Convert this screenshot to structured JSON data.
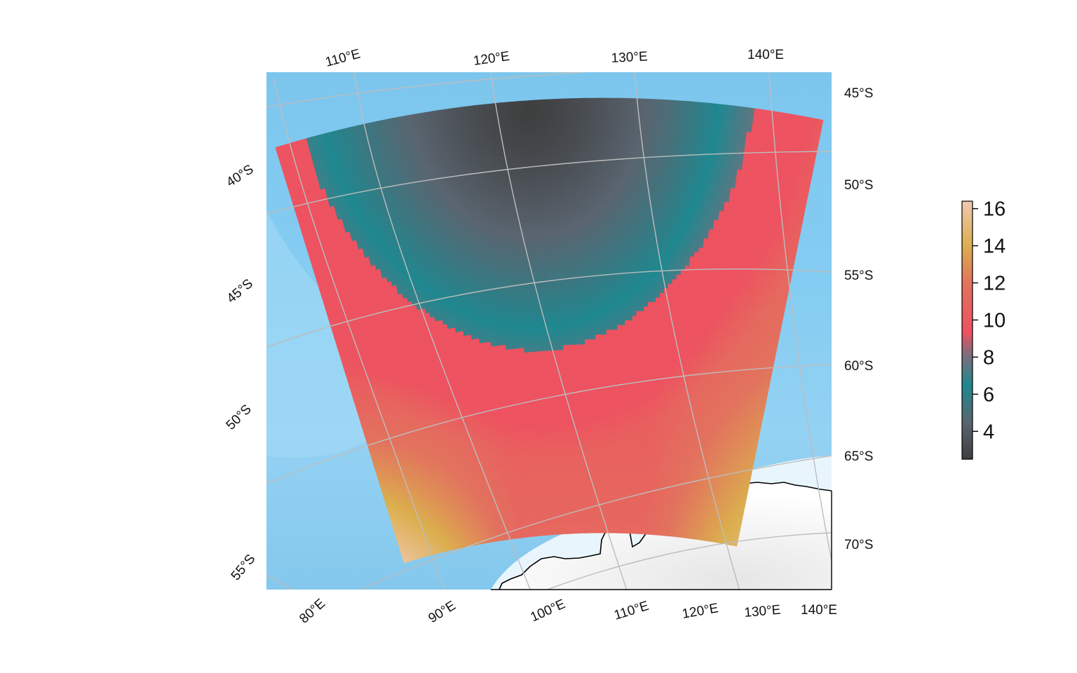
{
  "map": {
    "projection": "polar stereographic (south)",
    "graticule_color": "#bdbdbd",
    "ocean_color": "#7ec8ef",
    "ice_color": "#eef7fc",
    "land_color": "#f2f2f2",
    "coastline_color": "#000000",
    "top_labels": [
      "110°E",
      "120°E",
      "130°E",
      "140°E"
    ],
    "bottom_labels": [
      "80°E",
      "90°E",
      "100°E",
      "110°E",
      "120°E",
      "130°E",
      "140°E"
    ],
    "left_labels": [
      "40°S",
      "45°S",
      "50°S",
      "55°S"
    ],
    "right_labels": [
      "45°S",
      "50°S",
      "55°S",
      "60°S",
      "65°S",
      "70°S"
    ]
  },
  "legend": {
    "min": 2.5,
    "max": 16.4,
    "ticks": [
      "16",
      "14",
      "12",
      "10",
      "8",
      "6",
      "4"
    ],
    "tick_values": [
      16,
      14,
      12,
      10,
      8,
      6,
      4
    ],
    "colors": [
      {
        "value": 2.5,
        "color": "#3d3d3d"
      },
      {
        "value": 4.5,
        "color": "#5a6570"
      },
      {
        "value": 6.5,
        "color": "#1f8890"
      },
      {
        "value": 8.3,
        "color": "#8a6a78"
      },
      {
        "value": 9.3,
        "color": "#ee5060"
      },
      {
        "value": 12.0,
        "color": "#e2735e"
      },
      {
        "value": 14.0,
        "color": "#dbae4e"
      },
      {
        "value": 16.4,
        "color": "#f2c8b0"
      }
    ]
  },
  "field": {
    "min": 2.6,
    "center_value": 2.6,
    "ring_value": 7.0,
    "outer_value": 10.0,
    "edge_values": {
      "east": 13.5,
      "south_corner": 16.0,
      "north_east": 11.0
    }
  }
}
